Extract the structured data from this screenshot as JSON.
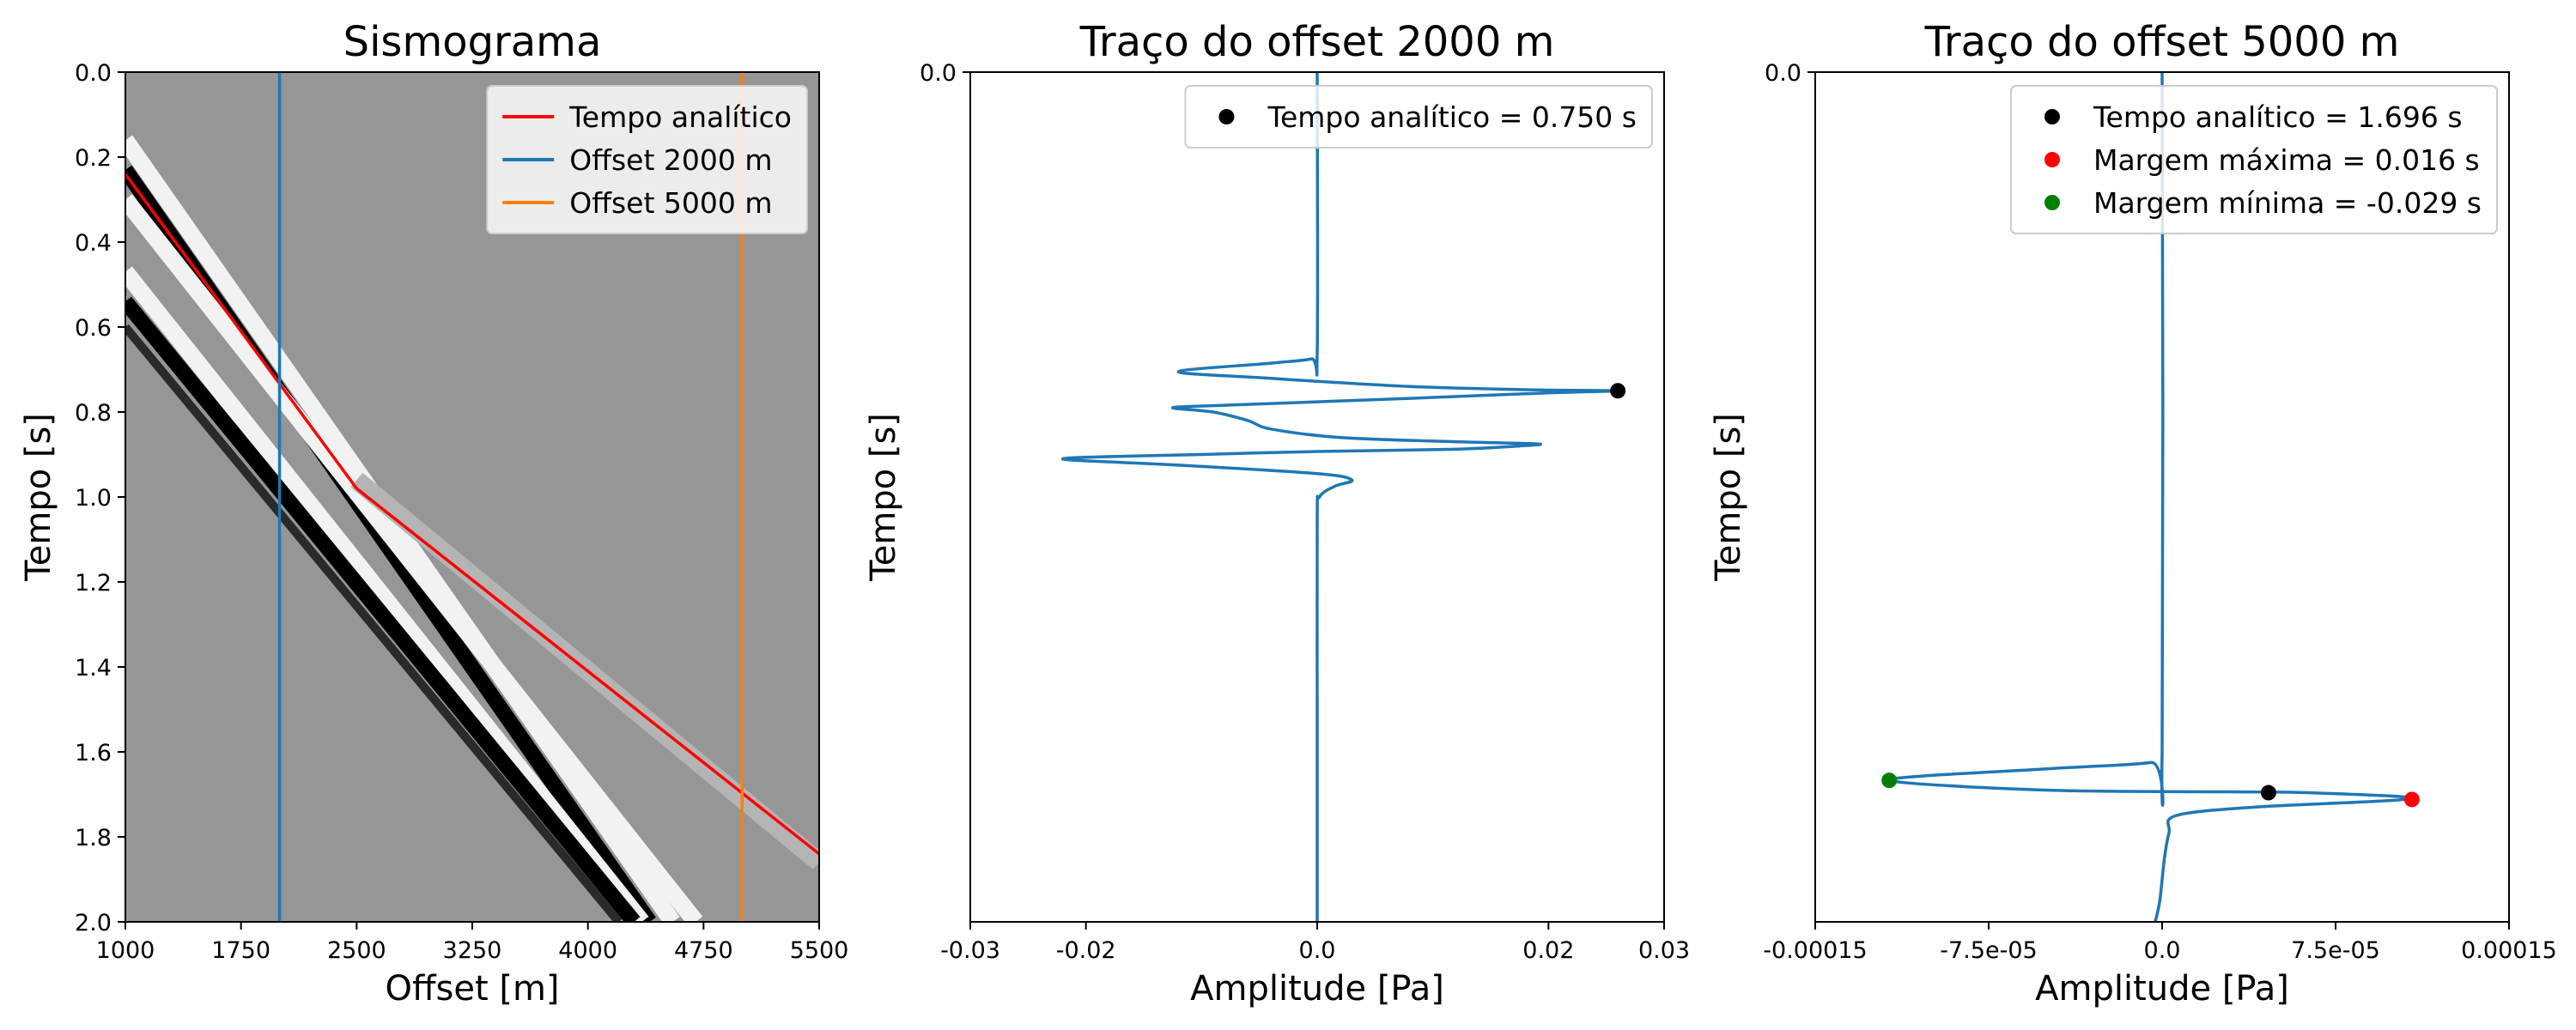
{
  "chart_data": [
    {
      "type": "heatmap",
      "title": "Sismograma",
      "xlabel": "Offset [m]",
      "ylabel": "Tempo [s]",
      "xlim": [
        1000,
        5500
      ],
      "ylim": [
        2.0,
        0.0
      ],
      "xticks": [
        "1000",
        "1750",
        "2500",
        "3250",
        "4000",
        "4750",
        "5500"
      ],
      "yticks": [
        "0.0",
        "0.2",
        "0.4",
        "0.6",
        "0.8",
        "1.0",
        "1.2",
        "1.4",
        "1.6",
        "1.8",
        "2.0"
      ],
      "background_color": "#969696",
      "events": [
        {
          "x": [
            1000,
            4550
          ],
          "y": [
            0.16,
            2.0
          ]
        },
        {
          "x": [
            1000,
            4400
          ],
          "y": [
            0.23,
            2.0
          ]
        },
        {
          "x": [
            1000,
            4700
          ],
          "y": [
            0.3,
            2.0
          ]
        },
        {
          "x": [
            1000,
            4350
          ],
          "y": [
            0.47,
            2.0
          ]
        },
        {
          "x": [
            1000,
            4300
          ],
          "y": [
            0.54,
            2.0
          ]
        },
        {
          "x": [
            1000,
            4200
          ],
          "y": [
            0.6,
            2.0
          ]
        },
        {
          "x": [
            2500,
            5500
          ],
          "y": [
            0.96,
            1.86
          ]
        }
      ],
      "series": [
        {
          "name": "Tempo analítico",
          "color": "#ff0000",
          "x": [
            1000,
            2500,
            5500
          ],
          "y": [
            0.24,
            0.98,
            1.84
          ]
        },
        {
          "name": "Offset 2000 m",
          "color": "#1f77b4",
          "x": [
            2000,
            2000
          ],
          "y": [
            0.0,
            2.0
          ]
        },
        {
          "name": "Offset 5000 m",
          "color": "#ff7f0e",
          "x": [
            5000,
            5000
          ],
          "y": [
            0.0,
            2.0
          ]
        }
      ],
      "legend": {
        "location": "upper-right",
        "entries": [
          "Tempo analítico",
          "Offset 2000 m",
          "Offset 5000 m"
        ]
      }
    },
    {
      "type": "line",
      "title": "Traço do offset 2000 m",
      "xlabel": "Amplitude [Pa]",
      "ylabel": "Tempo [s]",
      "xlim": [
        -0.03,
        0.03
      ],
      "ylim": [
        2.0,
        0.0
      ],
      "xticks": [
        "-0.03",
        "-0.02",
        "0.0",
        "0.02",
        "0.03"
      ],
      "xtick_values": [
        -0.03,
        -0.02,
        0.0,
        0.02,
        0.03
      ],
      "yticks": [
        "0.0"
      ],
      "series": [
        {
          "color": "#1f77b4",
          "x": [
            0,
            0,
            -0.0005,
            -0.004,
            -0.012,
            -0.0045,
            0.008,
            0.019,
            0.026,
            0.02,
            0.006,
            -0.008,
            -0.0125,
            -0.009,
            -0.006,
            -0.004,
            0.002,
            0.012,
            0.019,
            0.0175,
            0.0115,
            0.0,
            -0.01,
            -0.022,
            -0.012,
            0.0,
            0.003,
            0.0015,
            0.0002,
            0,
            0,
            0
          ],
          "y": [
            0.0,
            0.66,
            0.675,
            0.685,
            0.705,
            0.72,
            0.74,
            0.748,
            0.75,
            0.755,
            0.77,
            0.784,
            0.79,
            0.8,
            0.82,
            0.84,
            0.86,
            0.87,
            0.875,
            0.88,
            0.888,
            0.893,
            0.9,
            0.91,
            0.925,
            0.945,
            0.96,
            0.975,
            1.0,
            1.05,
            1.5,
            2.0
          ]
        }
      ],
      "points": [
        {
          "name": "Tempo analítico = 0.750 s",
          "color": "#000000",
          "x": 0.026,
          "y": 0.75
        }
      ],
      "legend": {
        "location": "upper-right",
        "entries": [
          "Tempo analítico = 0.750 s"
        ]
      }
    },
    {
      "type": "line",
      "title": "Traço do offset 5000 m",
      "xlabel": "Amplitude [Pa]",
      "ylabel": "Tempo [s]",
      "xlim": [
        -0.00015,
        0.00015
      ],
      "ylim": [
        2.0,
        0.0
      ],
      "xticks": [
        "-0.00015",
        "-7.5e-05",
        "0.0",
        "7.5e-05",
        "0.00015"
      ],
      "xtick_values": [
        -0.00015,
        -7.5e-05,
        0.0,
        7.5e-05,
        0.00015
      ],
      "yticks": [
        "0.0"
      ],
      "series": [
        {
          "color": "#1f77b4",
          "x": [
            0,
            0,
            -5e-06,
            -5e-05,
            -0.000118,
            -5e-05,
            3e-05,
            6.3e-05,
            0.000108,
            4e-05,
            6e-06,
            3e-06,
            1e-06,
            -1e-06,
            -3e-06
          ],
          "y": [
            0.0,
            1.6,
            1.625,
            1.64,
            1.666,
            1.69,
            1.694,
            1.696,
            1.71,
            1.73,
            1.75,
            1.79,
            1.85,
            1.95,
            2.0
          ]
        }
      ],
      "points": [
        {
          "name": "Tempo analítico = 1.696 s",
          "color": "#000000",
          "x": 4.6e-05,
          "y": 1.696
        },
        {
          "name": "Margem máxima = 0.016 s",
          "color": "#ff0000",
          "x": 0.000108,
          "y": 1.712
        },
        {
          "name": "Margem mínima = -0.029 s",
          "color": "#008000",
          "x": -0.000118,
          "y": 1.667
        }
      ],
      "legend": {
        "location": "upper-right",
        "entries": [
          "Tempo analítico = 1.696 s",
          "Margem máxima = 0.016 s",
          "Margem mínima = -0.029 s"
        ]
      }
    }
  ]
}
